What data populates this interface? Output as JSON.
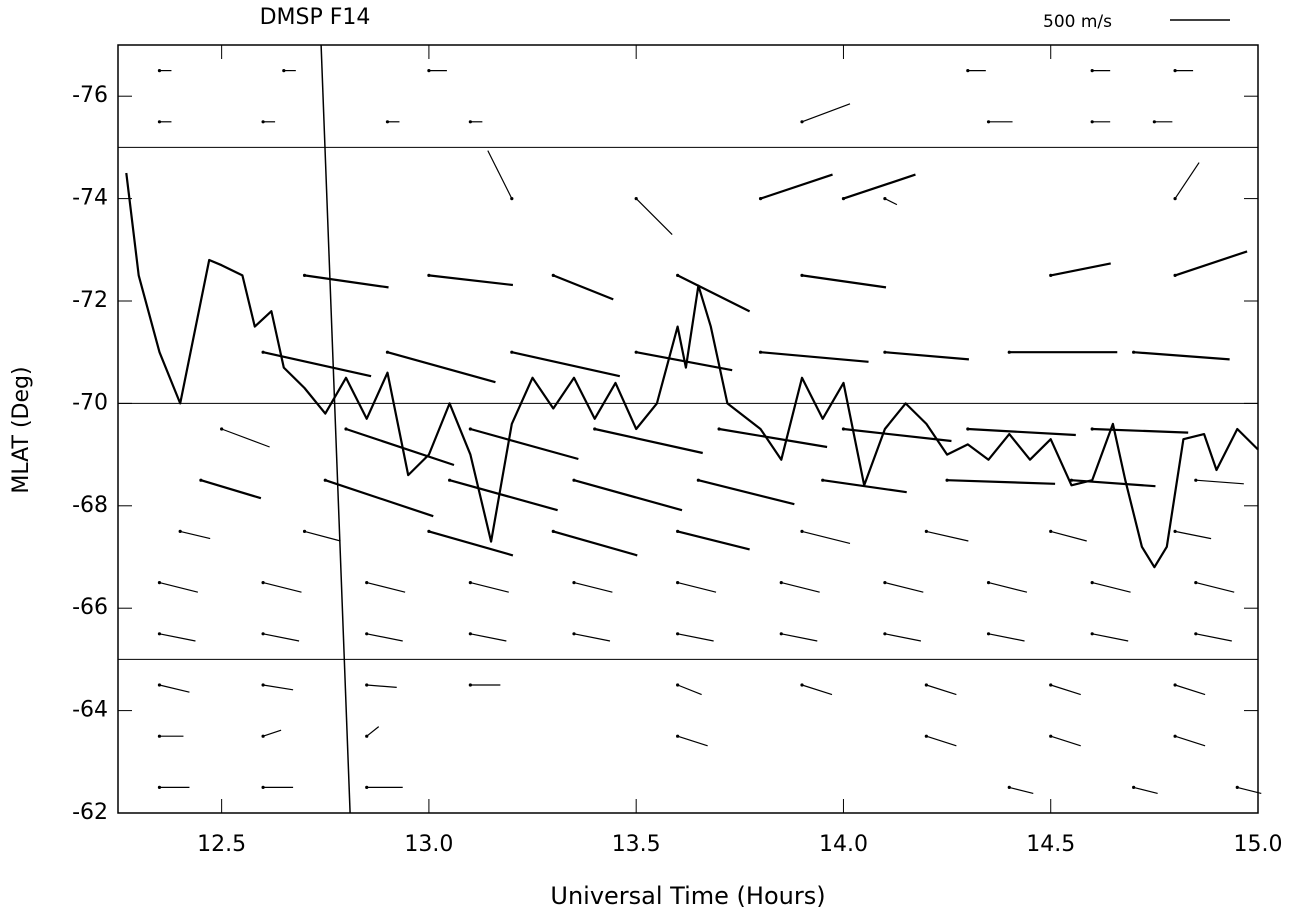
{
  "chart_data": {
    "type": "vector",
    "title": "DMSP F14",
    "xlabel": "Universal Time (Hours)",
    "ylabel": "MLAT (Deg)",
    "xlim": [
      12.25,
      15.0
    ],
    "xticks": [
      12.5,
      {
        "value": 13,
        "label": "13.0"
      },
      13.5,
      {
        "value": 14,
        "label": "14.0"
      },
      14.5,
      {
        "value": 15,
        "label": "15.0"
      }
    ],
    "ylim": [
      -62,
      -77
    ],
    "yticks": [
      -62,
      -64,
      -66,
      -68,
      -70,
      -72,
      -74,
      -76
    ],
    "hlines": [
      -75,
      -70,
      -65
    ],
    "scale_label": "500 m/s",
    "scale_value": 500,
    "color": "#000000",
    "track": {
      "x": [
        12.74,
        12.81
      ],
      "y": [
        -77,
        -62
      ]
    },
    "boundary": {
      "x": [
        12.27,
        12.3,
        12.35,
        12.4,
        12.45,
        12.47,
        12.5,
        12.55,
        12.58,
        12.62,
        12.65,
        12.7,
        12.75,
        12.8,
        12.85,
        12.9,
        12.95,
        13.0,
        13.05,
        13.1,
        13.15,
        13.2,
        13.25,
        13.3,
        13.35,
        13.4,
        13.45,
        13.5,
        13.55,
        13.6,
        13.62,
        13.65,
        13.68,
        13.72,
        13.8,
        13.85,
        13.9,
        13.95,
        14.0,
        14.05,
        14.1,
        14.15,
        14.2,
        14.25,
        14.3,
        14.35,
        14.4,
        14.45,
        14.5,
        14.55,
        14.6,
        14.65,
        14.68,
        14.72,
        14.75,
        14.78,
        14.82,
        14.87,
        14.9,
        14.95,
        15.0
      ],
      "y": [
        -74.5,
        -72.5,
        -71,
        -70,
        -72,
        -72.8,
        -72.7,
        -72.5,
        -71.5,
        -71.8,
        -70.7,
        -70.3,
        -69.8,
        -70.5,
        -69.7,
        -70.6,
        -68.6,
        -69,
        -70,
        -69,
        -67.3,
        -69.6,
        -70.5,
        -69.9,
        -70.5,
        -69.7,
        -70.4,
        -69.5,
        -70,
        -71.5,
        -70.7,
        -72.3,
        -71.5,
        -70,
        -69.5,
        -68.9,
        -70.5,
        -69.7,
        -70.4,
        -68.4,
        -69.5,
        -70,
        -69.6,
        -69,
        -69.2,
        -68.9,
        -69.4,
        -68.9,
        -69.3,
        -68.4,
        -68.5,
        -69.6,
        -68.5,
        -67.2,
        -66.8,
        -67.2,
        -69.3,
        -69.4,
        -68.7,
        -69.5,
        -69.1
      ]
    },
    "vector_rows": [
      {
        "y": -62.5,
        "x": [
          12.35,
          12.6,
          12.85,
          14.4,
          14.7,
          14.95
        ],
        "u": [
          250,
          250,
          300,
          200,
          200,
          200
        ],
        "v": [
          0,
          0,
          0,
          -50,
          -50,
          -50
        ]
      },
      {
        "y": -63.5,
        "x": [
          12.35,
          12.6,
          12.85,
          13.6,
          14.2,
          14.5,
          14.8
        ],
        "u": [
          200,
          150,
          100,
          250,
          250,
          250,
          250
        ],
        "v": [
          0,
          50,
          80,
          -80,
          -80,
          -80,
          -80
        ]
      },
      {
        "y": -64.5,
        "x": [
          12.35,
          12.6,
          12.85,
          13.1,
          13.6,
          13.9,
          14.2,
          14.5,
          14.8
        ],
        "u": [
          250,
          250,
          250,
          250,
          200,
          250,
          250,
          250,
          250
        ],
        "v": [
          -60,
          -40,
          -20,
          0,
          -80,
          -80,
          -80,
          -80,
          -80
        ]
      },
      {
        "y": -65.5,
        "x": [
          12.35,
          12.6,
          12.85,
          13.1,
          13.35,
          13.6,
          13.85,
          14.1,
          14.35,
          14.6,
          14.85
        ],
        "u": [
          300,
          300,
          300,
          300,
          300,
          300,
          300,
          300,
          300,
          300,
          300
        ],
        "v": [
          -60,
          -60,
          -60,
          -60,
          -60,
          -60,
          -60,
          -60,
          -60,
          -60,
          -60
        ]
      },
      {
        "y": -66.5,
        "x": [
          12.35,
          12.6,
          12.85,
          13.1,
          13.35,
          13.6,
          13.85,
          14.1,
          14.35,
          14.6,
          14.85
        ],
        "u": [
          320,
          320,
          320,
          320,
          320,
          320,
          320,
          320,
          320,
          320,
          320
        ],
        "v": [
          -80,
          -80,
          -80,
          -80,
          -80,
          -80,
          -80,
          -80,
          -80,
          -80,
          -80
        ]
      },
      {
        "y": -67.5,
        "x": [
          12.4,
          12.7,
          13.0,
          13.3,
          13.6,
          13.9,
          14.2,
          14.5,
          14.8
        ],
        "u": [
          250,
          300,
          700,
          700,
          600,
          400,
          350,
          300,
          300
        ],
        "v": [
          -60,
          -80,
          -200,
          -200,
          -150,
          -100,
          -80,
          -80,
          -60
        ]
      },
      {
        "y": -68.5,
        "x": [
          12.45,
          12.75,
          13.05,
          13.35,
          13.65,
          13.95,
          14.25,
          14.55,
          14.85
        ],
        "u": [
          500,
          900,
          900,
          900,
          800,
          700,
          900,
          700,
          400
        ],
        "v": [
          -150,
          -300,
          -250,
          -250,
          -200,
          -100,
          -30,
          -50,
          -30
        ]
      },
      {
        "y": -69.5,
        "x": [
          12.5,
          12.8,
          13.1,
          13.4,
          13.7,
          14.0,
          14.3,
          14.6
        ],
        "u": [
          400,
          900,
          900,
          900,
          900,
          900,
          900,
          800
        ],
        "v": [
          -150,
          -300,
          -250,
          -200,
          -150,
          -100,
          -50,
          -30
        ]
      },
      {
        "y": -71,
        "x": [
          12.6,
          12.9,
          13.2,
          13.5,
          13.8,
          14.1,
          14.4,
          14.7
        ],
        "u": [
          900,
          900,
          900,
          800,
          900,
          700,
          900,
          800
        ],
        "v": [
          -200,
          -250,
          -200,
          -150,
          -80,
          -60,
          0,
          -60
        ]
      },
      {
        "y": -72.5,
        "x": [
          12.7,
          13.0,
          13.3,
          13.6,
          13.9,
          14.5,
          14.8
        ],
        "u": [
          700,
          700,
          500,
          600,
          700,
          500,
          600
        ],
        "v": [
          -100,
          -80,
          -200,
          -300,
          -100,
          100,
          200
        ]
      },
      {
        "y": -74,
        "x": [
          13.2,
          13.5,
          13.8,
          14.0,
          14.1,
          14.8
        ],
        "u": [
          -200,
          300,
          600,
          600,
          100,
          200
        ],
        "v": [
          400,
          -300,
          200,
          200,
          -50,
          300
        ]
      },
      {
        "y": -75.5,
        "x": [
          12.35,
          12.6,
          12.9,
          13.1,
          13.9,
          14.35,
          14.6,
          14.75
        ],
        "u": [
          100,
          100,
          100,
          100,
          400,
          200,
          150,
          150
        ],
        "v": [
          0,
          0,
          0,
          0,
          150,
          0,
          0,
          0
        ]
      },
      {
        "y": -76.5,
        "x": [
          12.35,
          12.65,
          13.0,
          14.3,
          14.6,
          14.8
        ],
        "u": [
          100,
          100,
          150,
          150,
          150,
          150
        ],
        "v": [
          0,
          0,
          0,
          0,
          0,
          0
        ]
      }
    ]
  }
}
